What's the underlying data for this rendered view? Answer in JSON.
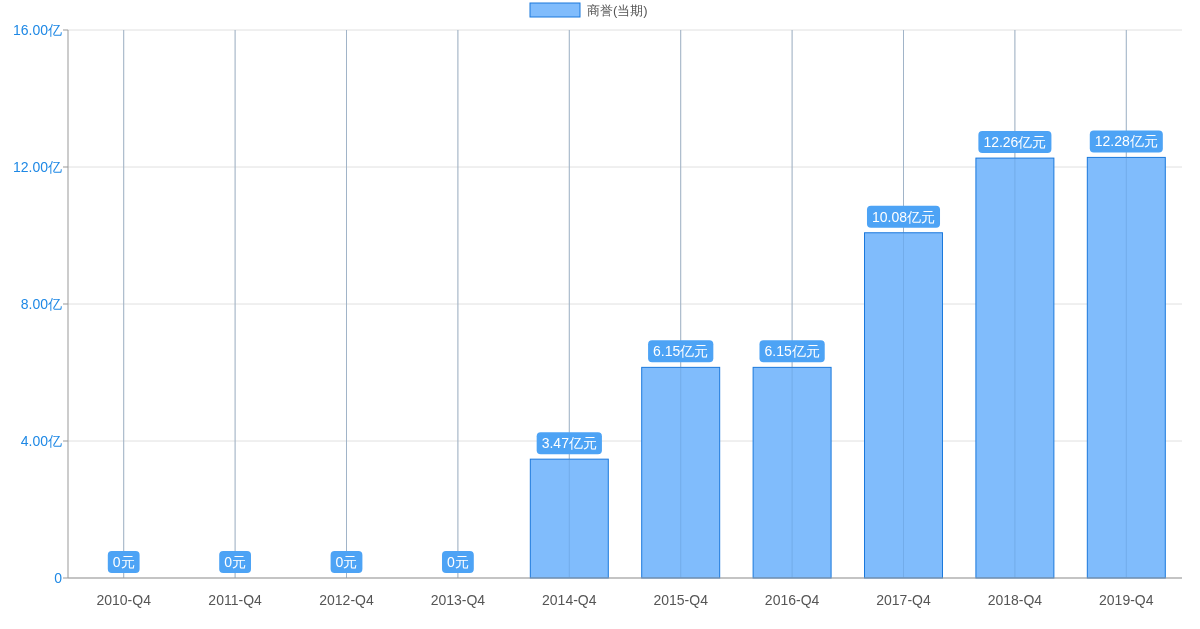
{
  "chart_data": {
    "type": "bar",
    "categories": [
      "2010-Q4",
      "2011-Q4",
      "2012-Q4",
      "2013-Q4",
      "2014-Q4",
      "2015-Q4",
      "2016-Q4",
      "2017-Q4",
      "2018-Q4",
      "2019-Q4"
    ],
    "series": [
      {
        "name": "商誉(当期)",
        "color": "#80bcfc",
        "values": [
          0,
          0,
          0,
          0,
          3.47,
          6.15,
          6.15,
          10.08,
          12.26,
          12.28
        ],
        "value_labels": [
          "0元",
          "0元",
          "0元",
          "0元",
          "3.47亿元",
          "6.15亿元",
          "6.15亿元",
          "10.08亿元",
          "12.26亿元",
          "12.28亿元"
        ]
      }
    ],
    "ylim": [
      0,
      16
    ],
    "yticks": [
      {
        "value": 0,
        "label": "0"
      },
      {
        "value": 4,
        "label": "4.00亿"
      },
      {
        "value": 8,
        "label": "8.00亿"
      },
      {
        "value": 12,
        "label": "12.00亿"
      },
      {
        "value": 16,
        "label": "16.00亿"
      }
    ],
    "grid": true,
    "legend": "top"
  }
}
